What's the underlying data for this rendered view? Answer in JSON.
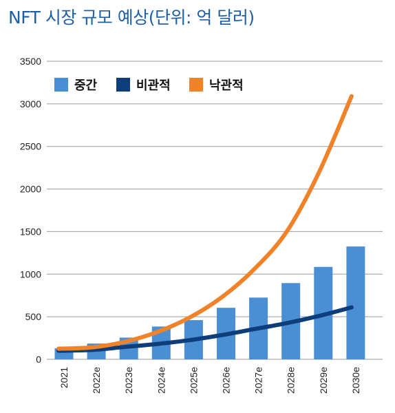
{
  "chart_data": {
    "type": "bar",
    "title": "NFT 시장 규모 예상(단위: 억 달러)",
    "categories": [
      "2021",
      "2022e",
      "2023e",
      "2024e",
      "2025e",
      "2026e",
      "2027e",
      "2028e",
      "2029e",
      "2030e"
    ],
    "ylim": [
      0,
      3500
    ],
    "yticks": [
      0,
      500,
      1000,
      1500,
      2000,
      2500,
      3000,
      3500
    ],
    "grid": true,
    "legend_position": "top-left",
    "series": [
      {
        "name": "중간",
        "kind": "bar",
        "color": "#4a8fd3",
        "values": [
          130,
          185,
          255,
          385,
          460,
          605,
          725,
          895,
          1085,
          1325
        ]
      },
      {
        "name": "비관적",
        "kind": "line",
        "color": "#0d3d7a",
        "values": [
          100,
          110,
          145,
          180,
          225,
          285,
          355,
          425,
          510,
          610
        ]
      },
      {
        "name": "낙관적",
        "kind": "line",
        "color": "#f0832a",
        "values": [
          125,
          140,
          205,
          320,
          490,
          730,
          1060,
          1500,
          2200,
          3090
        ]
      }
    ]
  }
}
